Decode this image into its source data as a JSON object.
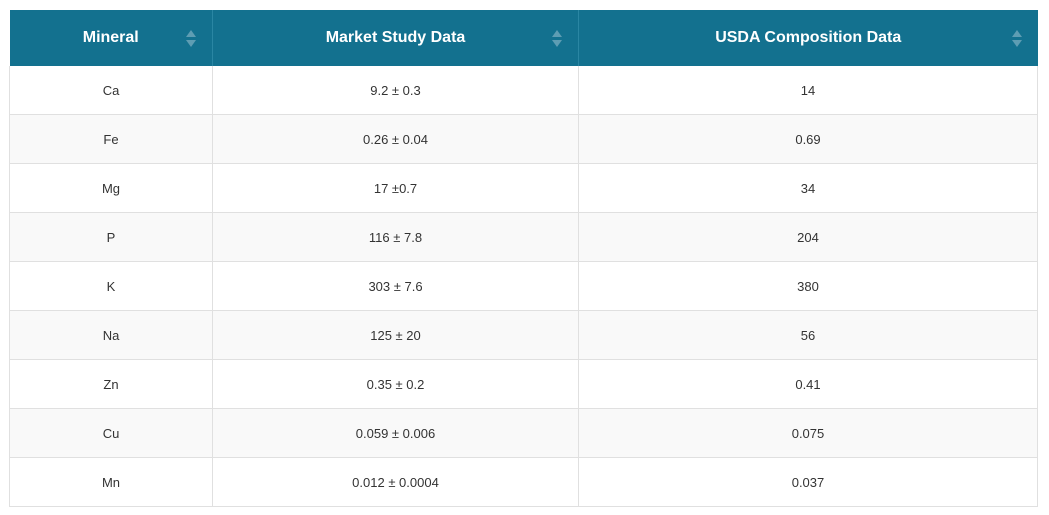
{
  "table": {
    "columns": [
      {
        "label": "Mineral"
      },
      {
        "label": "Market Study Data"
      },
      {
        "label": "USDA Composition Data"
      }
    ],
    "rows": [
      [
        "Ca",
        "9.2 ± 0.3",
        "14"
      ],
      [
        "Fe",
        "0.26 ± 0.04",
        "0.69"
      ],
      [
        "Mg",
        "17 ±0.7",
        "34"
      ],
      [
        "P",
        "116 ± 7.8",
        "204"
      ],
      [
        "K",
        "303 ± 7.6",
        "380"
      ],
      [
        "Na",
        "125 ± 20",
        "56"
      ],
      [
        "Zn",
        "0.35 ± 0.2",
        "0.41"
      ],
      [
        "Cu",
        "0.059 ± 0.006",
        "0.075"
      ],
      [
        "Mn",
        "0.012 ± 0.0004",
        "0.037"
      ]
    ]
  },
  "colors": {
    "header_bg": "#13718f",
    "header_text": "#ffffff",
    "row_alt_bg": "#f9f9f9",
    "border": "#e0e0e0"
  },
  "icons": {
    "sort": "sort-arrows-icon"
  }
}
